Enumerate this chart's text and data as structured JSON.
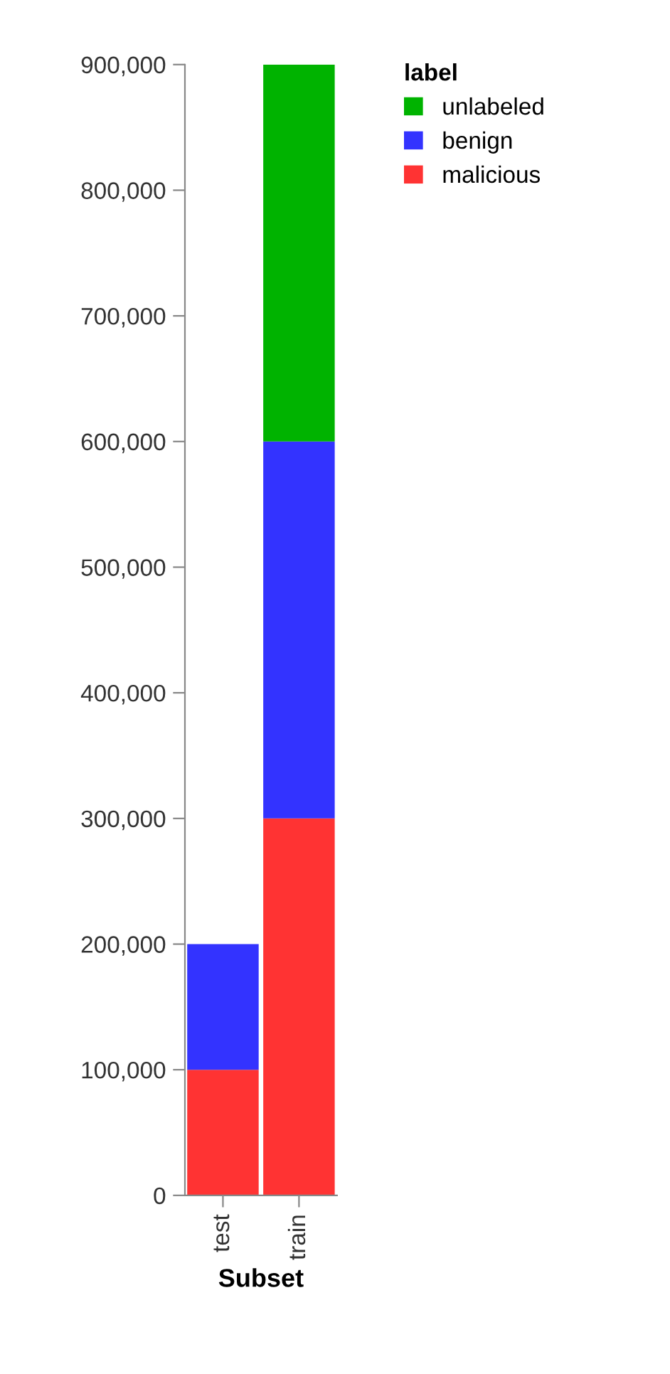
{
  "chart_data": {
    "type": "bar",
    "stacked": true,
    "xlabel": "Subset",
    "legend_title": "label",
    "legend": "right",
    "grid": false,
    "categories": [
      "test",
      "train"
    ],
    "series": [
      {
        "name": "malicious",
        "color": "#ff3333",
        "values": [
          100000,
          300000
        ]
      },
      {
        "name": "benign",
        "color": "#3333ff",
        "values": [
          100000,
          300000
        ]
      },
      {
        "name": "unlabeled",
        "color": "#00b300",
        "values": [
          0,
          300000
        ]
      }
    ],
    "ylim": [
      0,
      900000
    ],
    "yticks": [
      {
        "value": 0,
        "label": "0"
      },
      {
        "value": 100000,
        "label": "100,000"
      },
      {
        "value": 200000,
        "label": "200,000"
      },
      {
        "value": 300000,
        "label": "300,000"
      },
      {
        "value": 400000,
        "label": "400,000"
      },
      {
        "value": 500000,
        "label": "500,000"
      },
      {
        "value": 600000,
        "label": "600,000"
      },
      {
        "value": 700000,
        "label": "700,000"
      },
      {
        "value": 800000,
        "label": "800,000"
      },
      {
        "value": 900000,
        "label": "900,000"
      }
    ]
  }
}
